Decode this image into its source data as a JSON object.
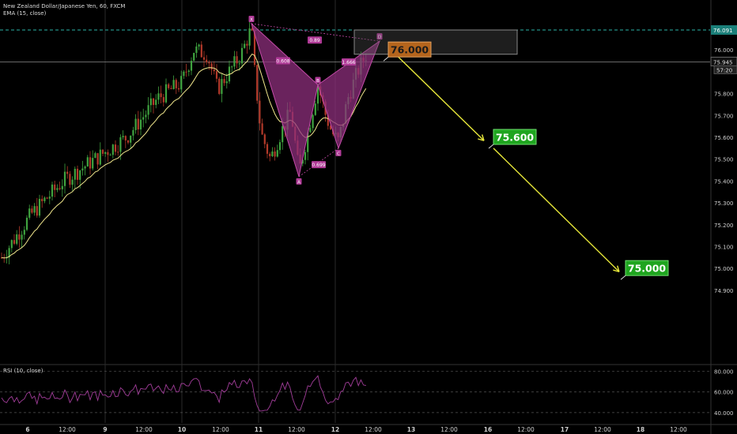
{
  "header": {
    "symbol": "New Zealand Dollar/Japanese Yen, 60, FXCM",
    "ema_label": "EMA (15, close)",
    "rsi_label": "RSI (10, close)"
  },
  "colors": {
    "background": "#000000",
    "candle_up": "#3fa33f",
    "candle_down": "#b33a2a",
    "ema": "#f0e68c",
    "pattern_fill": "#8e2f7c",
    "pattern_edge": "#c44aa8",
    "arrow": "#e8e83a",
    "target_green": "#1fa51f",
    "target_orange": "#b5651d",
    "rsi_line": "#a23d9a"
  },
  "chart_data": {
    "type": "candlestick",
    "instrument": "New Zealand Dollar/Japanese Yen",
    "timeframe": "60",
    "source": "FXCM",
    "ylim": [
      74.9,
      76.12
    ],
    "y_ticks": [
      "76.000",
      "75.900",
      "75.800",
      "75.700",
      "75.600",
      "75.500",
      "75.400",
      "75.300",
      "75.200",
      "75.100",
      "75.000",
      "74.900"
    ],
    "x_ticks": [
      "6",
      "12:00",
      "9",
      "12:00",
      "10",
      "12:00",
      "11",
      "12:00",
      "12",
      "12:00",
      "13",
      "12:00",
      "16",
      "12:00",
      "17",
      "12:00",
      "18",
      "12:00"
    ],
    "price_labels": {
      "dashed_level": "76.091",
      "last_price": "75.945",
      "countdown": "57:20"
    },
    "ema_period": 15,
    "pattern_points": [
      {
        "label": "X",
        "value": 76.12
      },
      {
        "label": "A",
        "value": 75.42
      },
      {
        "label": "B",
        "value": 75.84
      },
      {
        "label": "C",
        "value": 75.55
      },
      {
        "label": "D",
        "value": 76.04
      }
    ],
    "pattern_ratios": [
      "0.608",
      "0.699",
      "1.666",
      "0.89"
    ],
    "targets": [
      {
        "label": "76.000",
        "value": 76.0
      },
      {
        "label": "75.600",
        "value": 75.6
      },
      {
        "label": "75.000",
        "value": 75.0
      }
    ],
    "rsi": {
      "period": 10,
      "ylim": [
        30,
        85
      ],
      "ticks": [
        "80.000",
        "60.000",
        "40.000"
      ]
    }
  }
}
